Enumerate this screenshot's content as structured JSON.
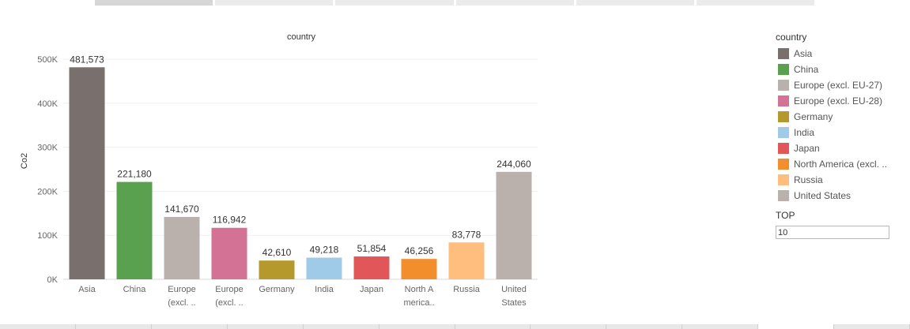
{
  "chart_data": {
    "type": "bar",
    "title": "country",
    "xlabel": "",
    "ylabel": "Co2",
    "ylim": [
      0,
      520000
    ],
    "yticks": [
      0,
      100000,
      200000,
      300000,
      400000,
      500000
    ],
    "ytick_labels": [
      "0K",
      "100K",
      "200K",
      "300K",
      "400K",
      "500K"
    ],
    "grid": true,
    "categories": [
      [
        "Asia"
      ],
      [
        "China"
      ],
      [
        "Europe",
        "(excl. .."
      ],
      [
        "Europe",
        "(excl. .."
      ],
      [
        "Germany"
      ],
      [
        "India"
      ],
      [
        "Japan"
      ],
      [
        "North A",
        "merica.."
      ],
      [
        "Russia"
      ],
      [
        "United",
        "States"
      ]
    ],
    "values": [
      481573,
      221180,
      141670,
      116942,
      42610,
      49218,
      51854,
      46256,
      83778,
      244060
    ],
    "value_labels": [
      "481,573",
      "221,180",
      "141,670",
      "116,942",
      "42,610",
      "49,218",
      "51,854",
      "46,256",
      "83,778",
      "244,060"
    ],
    "colors": [
      "#79706e",
      "#59a14f",
      "#bab0ac",
      "#d37295",
      "#b6992d",
      "#a0cbe8",
      "#e15759",
      "#f28e2b",
      "#ffbe7d",
      "#bab0ac"
    ]
  },
  "legend": {
    "title": "country",
    "items": [
      {
        "label": "Asia",
        "color": "#79706e"
      },
      {
        "label": "China",
        "color": "#59a14f"
      },
      {
        "label": "Europe (excl. EU-27)",
        "color": "#bab0ac"
      },
      {
        "label": "Europe (excl. EU-28)",
        "color": "#d37295"
      },
      {
        "label": "Germany",
        "color": "#b6992d"
      },
      {
        "label": "India",
        "color": "#a0cbe8"
      },
      {
        "label": "Japan",
        "color": "#e15759"
      },
      {
        "label": "North America (excl. ..",
        "color": "#f28e2b"
      },
      {
        "label": "Russia",
        "color": "#ffbe7d"
      },
      {
        "label": "United States",
        "color": "#bab0ac"
      }
    ]
  },
  "parameter": {
    "label": "TOP",
    "value": "10"
  }
}
